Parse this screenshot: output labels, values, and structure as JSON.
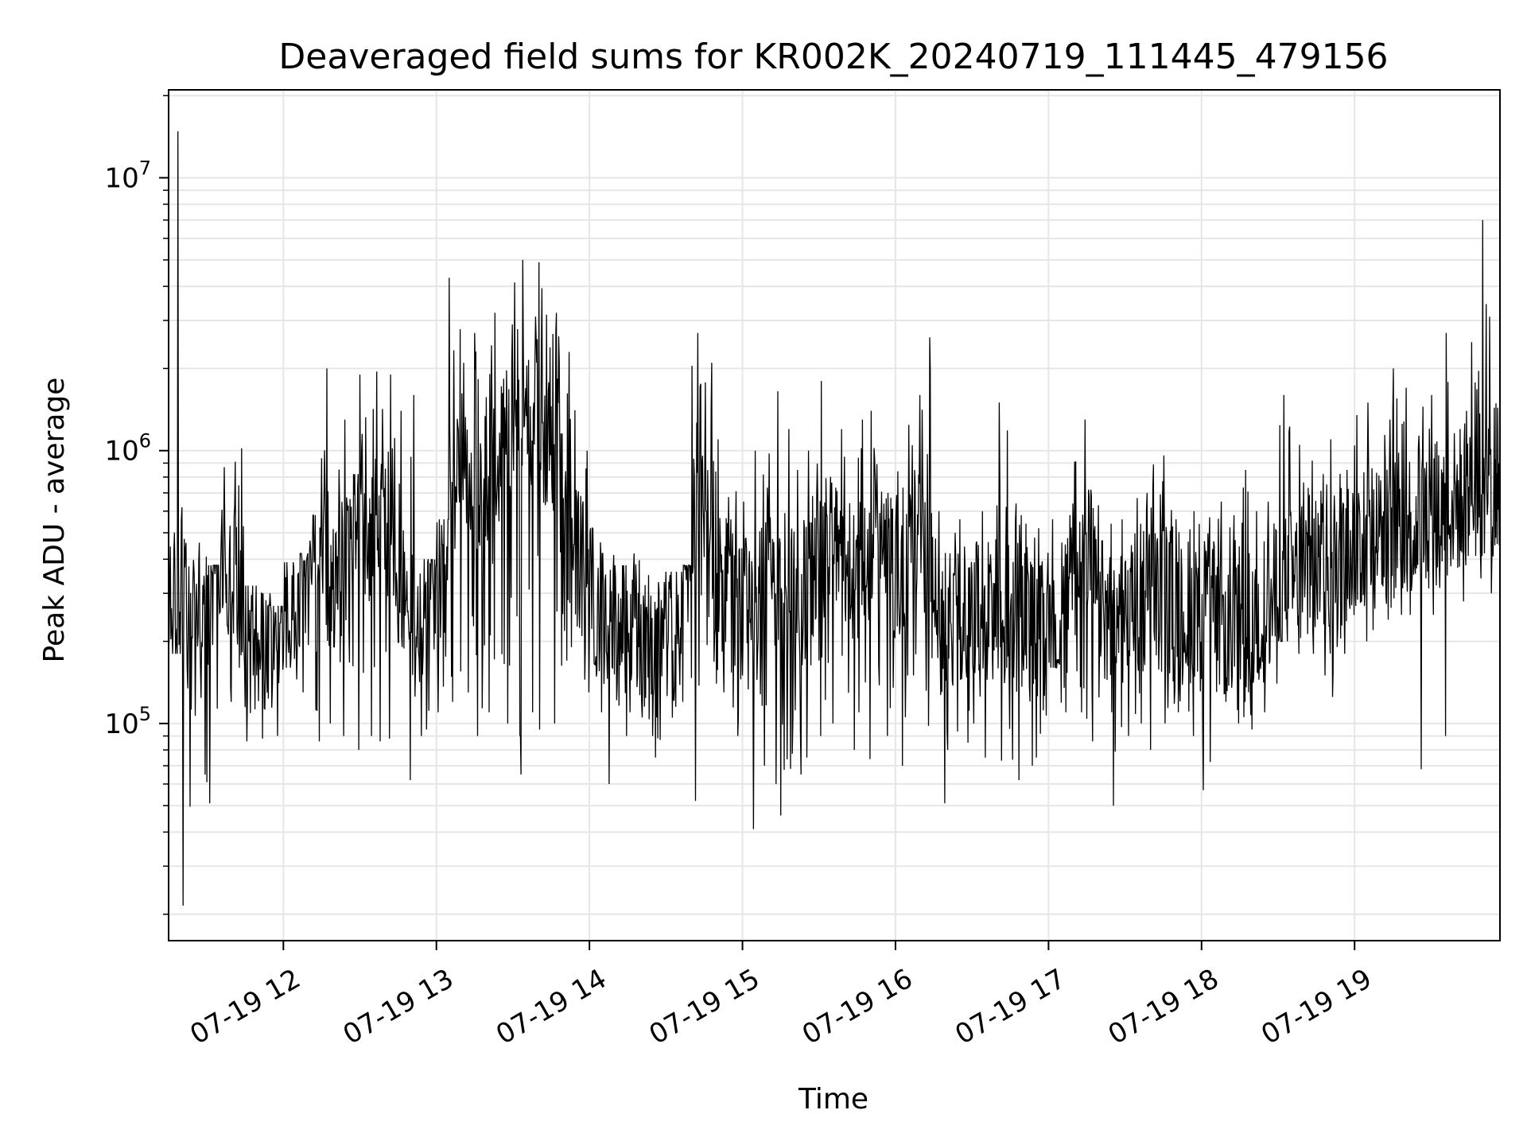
{
  "chart_data": {
    "type": "line",
    "title": "Deaveraged field sums for KR002K_20240719_111445_479156",
    "xlabel": "Time",
    "ylabel": "Peak ADU - average",
    "yscale": "log",
    "ylim": [
      16000,
      21000000
    ],
    "xlim": [
      "2024-07-19 11:15",
      "2024-07-19 19:57"
    ],
    "grid": true,
    "line_color": "#000000",
    "grid_color": "#e6e6e6",
    "x_ticks": [
      {
        "value": "2024-07-19 12:00",
        "label": "07-19 12"
      },
      {
        "value": "2024-07-19 13:00",
        "label": "07-19 13"
      },
      {
        "value": "2024-07-19 14:00",
        "label": "07-19 14"
      },
      {
        "value": "2024-07-19 15:00",
        "label": "07-19 15"
      },
      {
        "value": "2024-07-19 16:00",
        "label": "07-19 16"
      },
      {
        "value": "2024-07-19 17:00",
        "label": "07-19 17"
      },
      {
        "value": "2024-07-19 18:00",
        "label": "07-19 18"
      },
      {
        "value": "2024-07-19 19:00",
        "label": "07-19 19"
      }
    ],
    "y_ticks": [
      {
        "value": 100000,
        "base": "10",
        "exp": "5"
      },
      {
        "value": 1000000,
        "base": "10",
        "exp": "6"
      },
      {
        "value": 10000000,
        "base": "10",
        "exp": "7"
      }
    ],
    "series": [
      {
        "x": [
          "2024-07-19 11:15",
          "2024-07-19 11:20",
          "2024-07-19 11:25",
          "2024-07-19 11:30",
          "2024-07-19 11:35",
          "2024-07-19 11:40",
          "2024-07-19 11:45",
          "2024-07-19 11:50",
          "2024-07-19 11:55",
          "2024-07-19 12:00",
          "2024-07-19 12:05",
          "2024-07-19 12:10",
          "2024-07-19 12:15",
          "2024-07-19 12:20",
          "2024-07-19 12:25",
          "2024-07-19 12:30",
          "2024-07-19 12:35",
          "2024-07-19 12:40",
          "2024-07-19 12:45",
          "2024-07-19 12:50",
          "2024-07-19 12:55",
          "2024-07-19 13:00",
          "2024-07-19 13:05",
          "2024-07-19 13:10",
          "2024-07-19 13:15",
          "2024-07-19 13:20",
          "2024-07-19 13:25",
          "2024-07-19 13:30",
          "2024-07-19 13:35",
          "2024-07-19 13:40",
          "2024-07-19 13:45",
          "2024-07-19 13:50",
          "2024-07-19 13:55",
          "2024-07-19 14:00",
          "2024-07-19 14:05",
          "2024-07-19 14:10",
          "2024-07-19 14:15",
          "2024-07-19 14:20",
          "2024-07-19 14:25",
          "2024-07-19 14:30",
          "2024-07-19 14:35",
          "2024-07-19 14:40",
          "2024-07-19 14:45",
          "2024-07-19 14:50",
          "2024-07-19 14:55",
          "2024-07-19 15:00",
          "2024-07-19 15:05",
          "2024-07-19 15:10",
          "2024-07-19 15:15",
          "2024-07-19 15:20",
          "2024-07-19 15:25",
          "2024-07-19 15:30",
          "2024-07-19 15:35",
          "2024-07-19 15:40",
          "2024-07-19 15:45",
          "2024-07-19 15:50",
          "2024-07-19 15:55",
          "2024-07-19 16:00",
          "2024-07-19 16:05",
          "2024-07-19 16:10",
          "2024-07-19 16:15",
          "2024-07-19 16:20",
          "2024-07-19 16:25",
          "2024-07-19 16:30",
          "2024-07-19 16:35",
          "2024-07-19 16:40",
          "2024-07-19 16:45",
          "2024-07-19 16:50",
          "2024-07-19 16:55",
          "2024-07-19 17:00",
          "2024-07-19 17:05",
          "2024-07-19 17:10",
          "2024-07-19 17:15",
          "2024-07-19 17:20",
          "2024-07-19 17:25",
          "2024-07-19 17:30",
          "2024-07-19 17:35",
          "2024-07-19 17:40",
          "2024-07-19 17:45",
          "2024-07-19 17:50",
          "2024-07-19 17:55",
          "2024-07-19 18:00",
          "2024-07-19 18:05",
          "2024-07-19 18:10",
          "2024-07-19 18:15",
          "2024-07-19 18:20",
          "2024-07-19 18:25",
          "2024-07-19 18:30",
          "2024-07-19 18:35",
          "2024-07-19 18:40",
          "2024-07-19 18:45",
          "2024-07-19 18:50",
          "2024-07-19 18:55",
          "2024-07-19 19:00",
          "2024-07-19 19:05",
          "2024-07-19 19:10",
          "2024-07-19 19:15",
          "2024-07-19 19:20",
          "2024-07-19 19:25",
          "2024-07-19 19:30",
          "2024-07-19 19:35",
          "2024-07-19 19:40",
          "2024-07-19 19:45",
          "2024-07-19 19:50",
          "2024-07-19 19:55"
        ],
        "baseline": [
          300000,
          250000,
          200000,
          260000,
          450000,
          380000,
          220000,
          200000,
          210000,
          250000,
          270000,
          320000,
          480000,
          330000,
          380000,
          550000,
          500000,
          650000,
          260000,
          230000,
          240000,
          300000,
          650000,
          780000,
          700000,
          850000,
          1000000,
          1150000,
          1250000,
          1200000,
          1050000,
          600000,
          420000,
          290000,
          250000,
          230000,
          240000,
          210000,
          200000,
          210000,
          220000,
          600000,
          520000,
          360000,
          280000,
          260000,
          240000,
          330000,
          260000,
          290000,
          310000,
          430000,
          470000,
          360000,
          350000,
          520000,
          480000,
          380000,
          420000,
          620000,
          270000,
          230000,
          240000,
          240000,
          260000,
          230000,
          250000,
          240000,
          200000,
          190000,
          170000,
          520000,
          480000,
          260000,
          250000,
          260000,
          270000,
          280000,
          290000,
          240000,
          260000,
          270000,
          250000,
          230000,
          260000,
          230000,
          270000,
          300000,
          330000,
          360000,
          380000,
          390000,
          420000,
          450000,
          480000,
          500000,
          520000,
          540000,
          560000,
          580000,
          620000,
          650000,
          700000,
          750000,
          800000
        ],
        "high": [
          14800000,
          620000,
          460000,
          380000,
          870000,
          1020000,
          320000,
          300000,
          270000,
          390000,
          420000,
          580000,
          2000000,
          1300000,
          820000,
          1900000,
          1950000,
          1900000,
          1400000,
          1600000,
          400000,
          560000,
          4300000,
          2100000,
          2700000,
          3200000,
          2900000,
          5000000,
          3100000,
          4900000,
          3200000,
          2300000,
          1000000,
          520000,
          420000,
          380000,
          420000,
          350000,
          330000,
          360000,
          380000,
          2700000,
          2100000,
          1100000,
          710000,
          650000,
          1000000,
          1650000,
          1200000,
          850000,
          1000000,
          1800000,
          1200000,
          950000,
          1300000,
          1400000,
          700000,
          840000,
          1600000,
          2600000,
          600000,
          500000,
          560000,
          600000,
          630000,
          1500000,
          640000,
          540000,
          520000,
          560000,
          640000,
          1300000,
          720000,
          540000,
          560000,
          670000,
          700000,
          890000,
          960000,
          560000,
          600000,
          570000,
          650000,
          580000,
          850000,
          600000,
          650000,
          1600000,
          1050000,
          920000,
          820000,
          1100000,
          850000,
          1350000,
          1500000,
          1300000,
          2000000,
          1700000,
          1450000,
          1600000,
          2700000,
          1400000,
          2500000,
          7000000,
          2100000
        ],
        "low": [
          180000,
          21500,
          65000,
          51000,
          120000,
          160000,
          86000,
          88000,
          90000,
          160000,
          130000,
          86000,
          100000,
          90000,
          80000,
          90000,
          86000,
          88000,
          62000,
          90000,
          95000,
          110000,
          120000,
          130000,
          90000,
          110000,
          100000,
          65000,
          110000,
          95000,
          100000,
          170000,
          130000,
          110000,
          60000,
          90000,
          110000,
          90000,
          75000,
          105000,
          120000,
          52000,
          140000,
          130000,
          90000,
          41000,
          70000,
          60000,
          46000,
          65000,
          75000,
          90000,
          100000,
          80000,
          110000,
          74000,
          90000,
          70000,
          150000,
          98000,
          51000,
          80000,
          85000,
          100000,
          75000,
          73000,
          62000,
          70000,
          75000,
          160000,
          110000,
          110000,
          86000,
          110000,
          50000,
          90000,
          100000,
          80000,
          100000,
          110000,
          90000,
          57000,
          120000,
          100000,
          95000,
          110000,
          140000,
          200000,
          180000,
          180000,
          150000,
          125000,
          180000,
          200000,
          220000,
          240000,
          250000,
          250000,
          68000,
          250000,
          90000,
          280000,
          340000,
          300000,
          450000
        ]
      }
    ]
  }
}
